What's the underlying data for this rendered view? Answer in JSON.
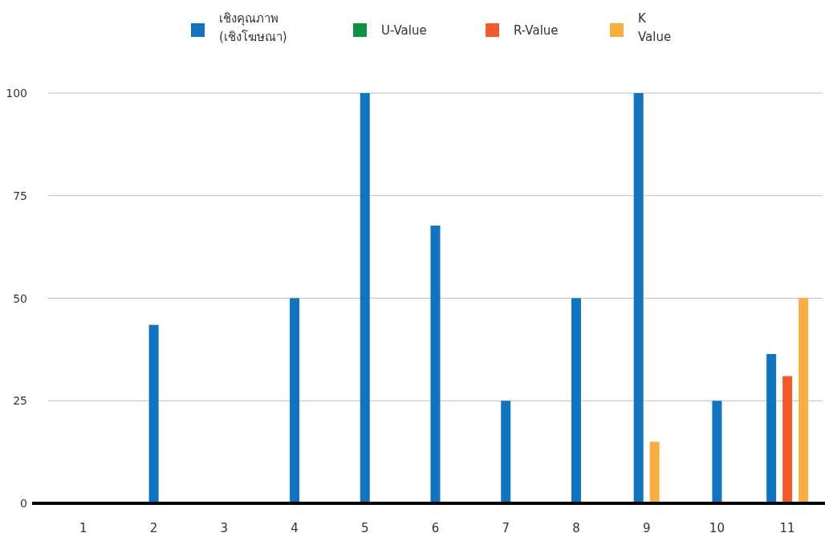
{
  "chart_data": {
    "type": "bar",
    "categories": [
      "1",
      "2",
      "3",
      "4",
      "5",
      "6",
      "7",
      "8",
      "9",
      "10",
      "11"
    ],
    "series": [
      {
        "name": "เชิงคุณภาพ (เชิงโฆษณา)",
        "color": "#1174c0",
        "values": [
          null,
          43.5,
          null,
          50,
          100,
          67.7,
          25,
          50,
          100,
          25,
          36.4
        ]
      },
      {
        "name": "U-Value",
        "color": "#0f9145",
        "values": [
          null,
          null,
          null,
          null,
          null,
          null,
          null,
          null,
          null,
          null,
          null
        ]
      },
      {
        "name": "R-Value",
        "color": "#f25c2a",
        "values": [
          null,
          null,
          null,
          null,
          null,
          null,
          null,
          null,
          null,
          null,
          31
        ]
      },
      {
        "name": "K Value",
        "color": "#fbae40",
        "values": [
          null,
          null,
          null,
          null,
          null,
          null,
          null,
          null,
          15,
          null,
          50
        ]
      }
    ],
    "ylim": [
      0,
      100
    ],
    "yticks": [
      0,
      25,
      50,
      75,
      100
    ],
    "grid": "y",
    "legend": "top"
  }
}
